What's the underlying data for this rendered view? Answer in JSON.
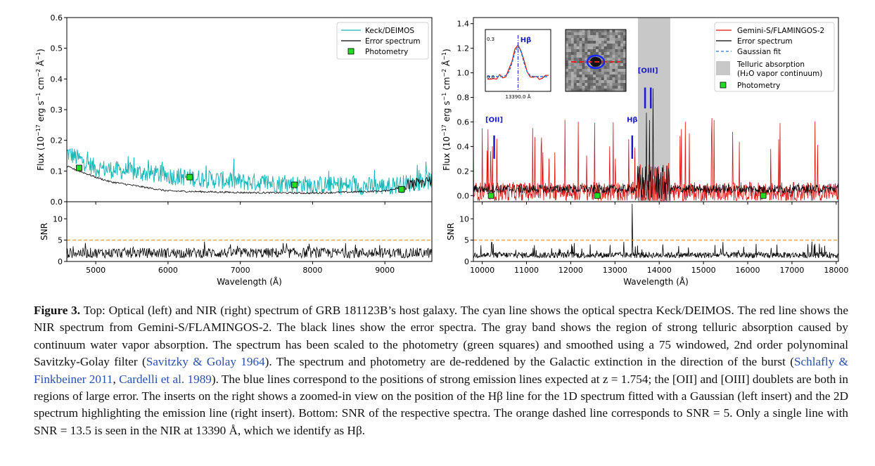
{
  "caption": {
    "label": "Figure 3.",
    "p1": " Top: Optical (left) and NIR (right) spectrum of GRB 181123B’s host galaxy. The cyan line shows the optical spectra Keck/DEIMOS. The red line shows the NIR spectrum from Gemini-S/FLAMINGOS-2. The black lines show the error spectra. The gray band shows the region of strong telluric absorption caused by continuum water vapor absorption. The spectrum has been scaled to the photometry (green squares) and smoothed using a 75 windowed, 2nd order polynominal Savitzky-Golay filter (",
    "cite1": "Savitzky & Golay 1964",
    "p2": "). The spectrum and photometry are de-reddened by the Galactic extinction in the direction of the burst (",
    "cite2": "Schlafly & Finkbeiner 2011",
    "p3": ", ",
    "cite3": "Cardelli et al. 1989",
    "p4": "). The blue lines correspond to the positions of strong emission lines expected at z = 1.754; the [OII] and [OIII] doublets are both in regions of large error. The inserts on the right shows a zoomed-in view on the position of the Hβ line for the 1D spectrum fitted with a Gaussian (left insert) and the 2D spectrum highlighting the emission line (right insert). Bottom: SNR of the respective spectra. The orange dashed line corresponds to SNR = 5. Only a single line with SNR = 13.5 is seen in the NIR at 13390 Å, which we identify as Hβ."
  },
  "colors": {
    "cyan": "#17b8b8",
    "red": "#e01010",
    "black": "#000000",
    "green": "#22dd22",
    "blue": "#1a1acc",
    "orange": "#ff9a1f",
    "gray": "#c8c8c8"
  },
  "chart_data": [
    {
      "type": "line",
      "panel": "optical-flux",
      "xlim": [
        4600,
        9650
      ],
      "ylim": [
        0.0,
        0.6
      ],
      "ylabel": "Flux (10^-17 erg s^-1 cm^-2 Å^-1)",
      "yticks": [
        "0.0",
        "0.1",
        "0.2",
        "0.3",
        "0.4",
        "0.5",
        "0.6"
      ],
      "legend_location": "top-right",
      "series": [
        {
          "name": "Keck/DEIMOS",
          "color": "#17b8b8",
          "style": "solid"
        },
        {
          "name": "Error spectrum",
          "color": "#000000",
          "style": "solid"
        },
        {
          "name": "Photometry",
          "color": "#22dd22",
          "style": "square-marker"
        }
      ],
      "photometry": [
        {
          "x": 4770,
          "y": 0.11
        },
        {
          "x": 6300,
          "y": 0.08
        },
        {
          "x": 7750,
          "y": 0.055
        },
        {
          "x": 9230,
          "y": 0.04
        }
      ],
      "signal_envelope": [
        {
          "x": 4600,
          "y": 0.16
        },
        {
          "x": 5000,
          "y": 0.11
        },
        {
          "x": 6000,
          "y": 0.085
        },
        {
          "x": 7000,
          "y": 0.065
        },
        {
          "x": 8000,
          "y": 0.055
        },
        {
          "x": 9000,
          "y": 0.05
        },
        {
          "x": 9650,
          "y": 0.07
        }
      ],
      "error_envelope": [
        {
          "x": 4600,
          "y": 0.115
        },
        {
          "x": 5000,
          "y": 0.08
        },
        {
          "x": 5200,
          "y": 0.065
        },
        {
          "x": 6000,
          "y": 0.035
        },
        {
          "x": 7000,
          "y": 0.03
        },
        {
          "x": 8000,
          "y": 0.028
        },
        {
          "x": 9000,
          "y": 0.035
        },
        {
          "x": 9650,
          "y": 0.07
        }
      ]
    },
    {
      "type": "line",
      "panel": "optical-snr",
      "xlim": [
        4600,
        9650
      ],
      "ylim": [
        0,
        14
      ],
      "ylabel": "SNR",
      "yticks": [
        "0",
        "5",
        "10"
      ],
      "xticks": [
        "5000",
        "6000",
        "7000",
        "8000",
        "9000"
      ],
      "xlabel": "Wavelength (Å)",
      "threshold": 5,
      "typical_snr": 2
    },
    {
      "type": "line",
      "panel": "nir-flux",
      "xlim": [
        9800,
        18050
      ],
      "ylim": [
        -0.05,
        1.45
      ],
      "ylabel": "Flux (10^-17 erg s^-1 cm^-2 Å^-1)",
      "yticks": [
        "0.0",
        "0.2",
        "0.4",
        "0.6",
        "0.8",
        "1.0",
        "1.2",
        "1.4"
      ],
      "legend_location": "top-right",
      "telluric_band": [
        13520,
        14250
      ],
      "series": [
        {
          "name": "Gemini-S/FLAMINGOS-2",
          "color": "#e01010",
          "style": "solid"
        },
        {
          "name": "Error spectrum",
          "color": "#000000",
          "style": "solid"
        },
        {
          "name": "Gaussian fit",
          "color": "#1f77d4",
          "style": "dashed"
        },
        {
          "name": "Telluric absorption (H₂O vapor continuum)",
          "color": "#c8c8c8",
          "style": "band"
        },
        {
          "name": "Photometry",
          "color": "#22dd22",
          "style": "square-marker"
        }
      ],
      "photometry": [
        {
          "x": 10200,
          "y": 0.0
        },
        {
          "x": 12600,
          "y": 0.0
        },
        {
          "x": 16350,
          "y": 0.0
        }
      ],
      "emission_lines": [
        {
          "label": "[OII]",
          "x": [
            10270
          ],
          "ymin": 0.3,
          "ymax": 0.49,
          "label_y": 0.6
        },
        {
          "label": "Hβ",
          "x": [
            13390
          ],
          "ymin": 0.3,
          "ymax": 0.49,
          "label_y": 0.6
        },
        {
          "label": "[OIII]",
          "x": [
            13680,
            13810
          ],
          "ymin": 0.71,
          "ymax": 0.88,
          "label_y": 1.0
        }
      ],
      "insets": [
        {
          "kind": "1d-zoom",
          "line_label": "Hβ",
          "xtick": "13390.0 Å",
          "yticks": [
            "0.0",
            "0.3"
          ]
        },
        {
          "kind": "2d-spectrum"
        }
      ]
    },
    {
      "type": "line",
      "panel": "nir-snr",
      "xlim": [
        9800,
        18050
      ],
      "ylim": [
        0,
        14
      ],
      "ylabel": "SNR",
      "yticks": [
        "0",
        "5",
        "10"
      ],
      "xticks": [
        "10000",
        "11000",
        "12000",
        "13000",
        "14000",
        "15000",
        "16000",
        "17000",
        "18000"
      ],
      "xlabel": "Wavelength (Å)",
      "threshold": 5,
      "peak": {
        "x": 13390,
        "y": 13.5
      }
    }
  ]
}
